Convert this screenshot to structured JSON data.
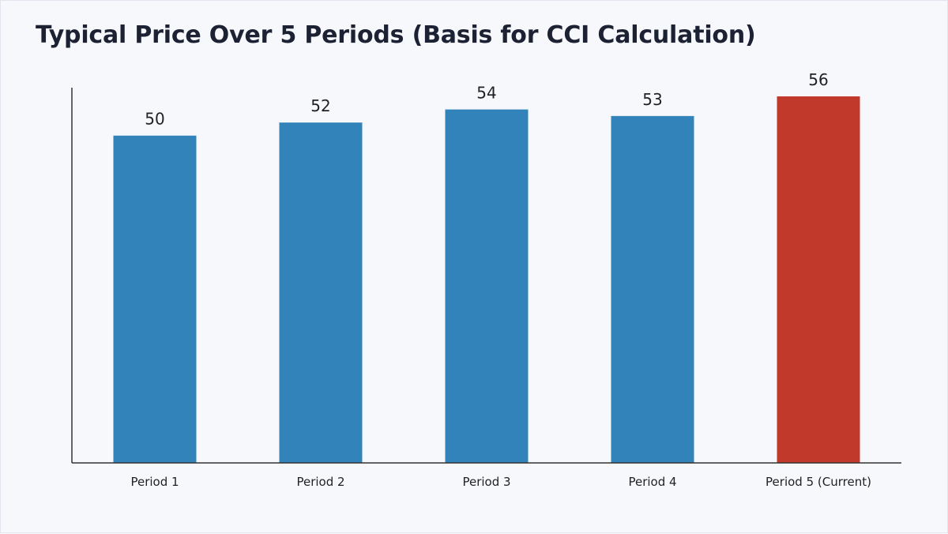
{
  "chart_data": {
    "type": "bar",
    "title": "Typical Price Over 5 Periods (Basis for CCI Calculation)",
    "xlabel": "",
    "ylabel": "",
    "categories": [
      "Period 1",
      "Period 2",
      "Period 3",
      "Period 4",
      "Period 5 (Current)"
    ],
    "values": [
      50,
      52,
      54,
      53,
      56
    ],
    "data_labels": [
      "50",
      "52",
      "54",
      "53",
      "56"
    ],
    "colors": [
      "#3283ba",
      "#3283ba",
      "#3283ba",
      "#3283ba",
      "#c0392b"
    ],
    "ylim": [
      0,
      70
    ],
    "grid": false,
    "legend": "none"
  }
}
